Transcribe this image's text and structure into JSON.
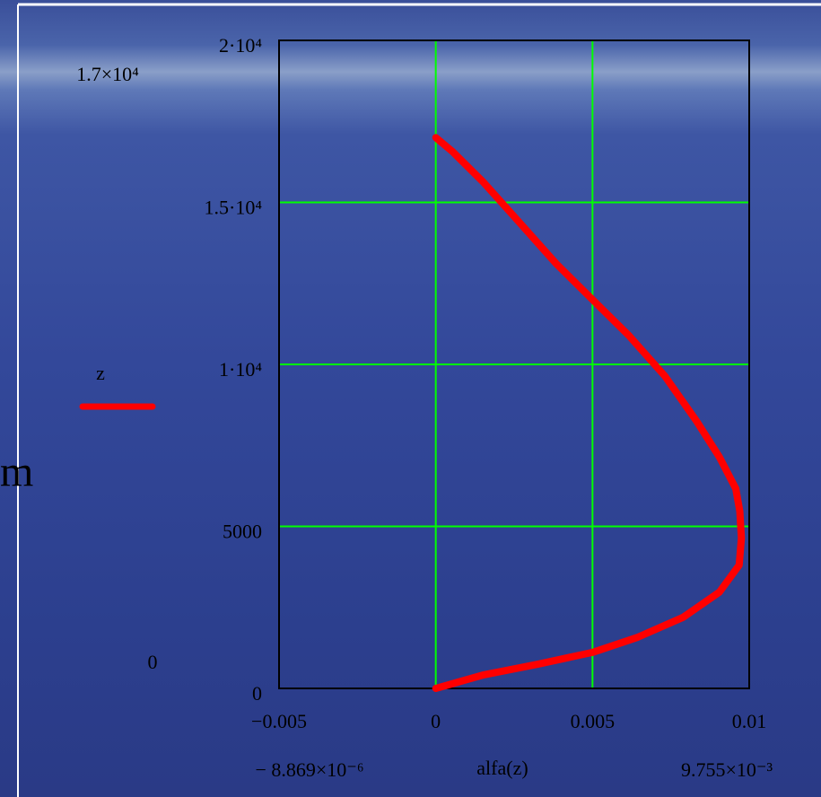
{
  "side_text": "m",
  "chart_data": {
    "type": "line",
    "x_label": "alfa(z)",
    "ymax_label": "1.7×10⁴",
    "ymin_label": "0",
    "xmin_label": "− 8.869×10⁻⁶",
    "xmax_label": "9.755×10⁻³",
    "xlim": [
      -0.005,
      0.01
    ],
    "xticks": [
      {
        "value": -0.005,
        "label": "−0.005"
      },
      0,
      0.005,
      0.01
    ],
    "ylim": [
      0,
      20000
    ],
    "yticks": [
      0,
      5000,
      {
        "value": 10000,
        "label": "1·10⁴"
      },
      {
        "value": 15000,
        "label": "1.5·10⁴"
      },
      {
        "value": 20000,
        "label": "2·10⁴"
      }
    ],
    "grid": true,
    "grid_color": "#00ff00",
    "legend": "left",
    "x": [
      0,
      0.00153,
      0.00327,
      0.005,
      0.00645,
      0.00789,
      0.00905,
      0.00968,
      0.00975,
      0.0097,
      0.00957,
      0.00905,
      0.00832,
      0.00731,
      0.00616,
      0.005,
      0.00384,
      0.00269,
      0.00153,
      0.00052,
      0
    ],
    "series": [
      {
        "name": "z",
        "color": "#ff0000",
        "values": [
          0,
          417,
          750,
          1111,
          1583,
          2194,
          2972,
          3806,
          4639,
          5472,
          6167,
          7139,
          8250,
          9639,
          10889,
          12000,
          13111,
          14361,
          15611,
          16583,
          17000
        ]
      }
    ]
  }
}
